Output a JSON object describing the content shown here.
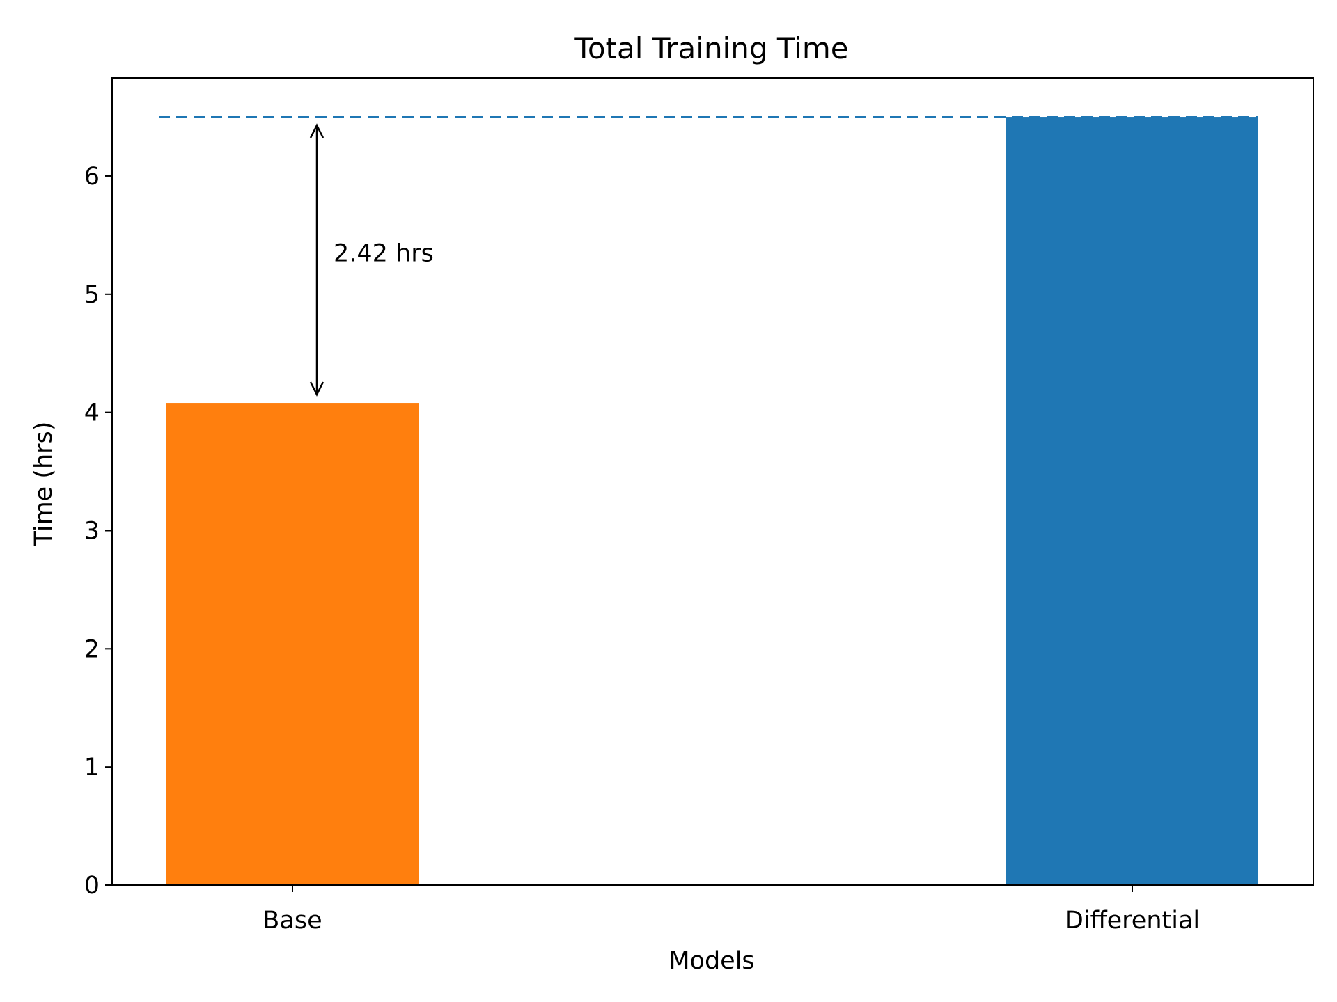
{
  "chart_data": {
    "type": "bar",
    "title": "Total Training Time",
    "xlabel": "Models",
    "ylabel": "Time (hrs)",
    "categories": [
      "Base",
      "Differential"
    ],
    "values": [
      4.08,
      6.5
    ],
    "bar_colors": [
      "#ff7f0e",
      "#1f77b4"
    ],
    "ylim": [
      0,
      6.83
    ],
    "yticks": [
      0,
      1,
      2,
      3,
      4,
      5,
      6
    ],
    "ytick_labels": [
      "0",
      "1",
      "2",
      "3",
      "4",
      "5",
      "6"
    ],
    "grid": false,
    "reference_line": {
      "y": 6.5,
      "style": "dashed",
      "color": "#1f77b4"
    },
    "annotation": {
      "text": "2.42 hrs",
      "from_y": 4.08,
      "to_y": 6.5,
      "category": "Base",
      "arrow": "double"
    }
  }
}
